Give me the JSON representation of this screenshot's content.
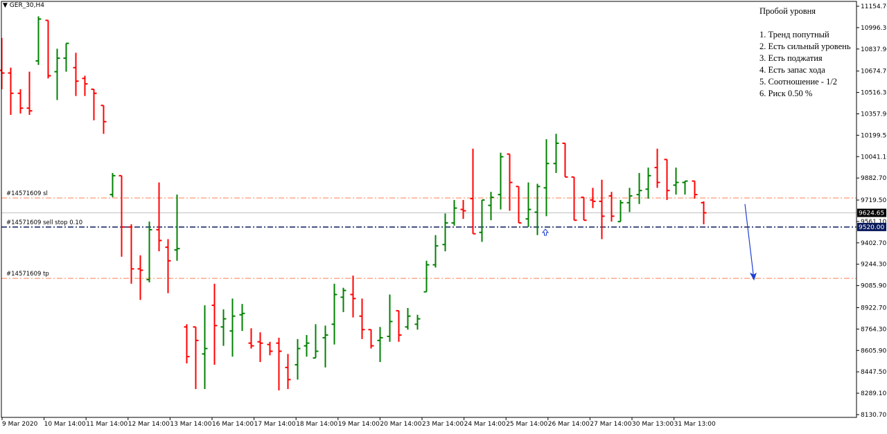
{
  "symbol_label": "GER_30,H4",
  "notes": {
    "title": "Пробой уровня",
    "items": [
      "1. Тренд попутный",
      "2. Есть сильный уровень",
      "3. Есть поджатия",
      "4. Есть запас хода",
      "5. Соотношение - 1/2",
      "6. Риск 0.50 %"
    ]
  },
  "colors": {
    "bull": "#008000",
    "bear": "#ff0000",
    "order_sl_tp": "#ff7f50",
    "order_entry": "#0a1a5c",
    "price_line": "#c0c0c0",
    "arrow": "#1e3fd0",
    "axis": "#000000"
  },
  "chart_data": {
    "type": "ohlc",
    "y_axis": {
      "ticks": [
        "11154.70",
        "10996.30",
        "10837.90",
        "10674.70",
        "10516.30",
        "10357.90",
        "10199.50",
        "10041.10",
        "9882.70",
        "9719.50",
        "9561.10",
        "9402.70",
        "9244.30",
        "9085.90",
        "8922.70",
        "8764.30",
        "8605.90",
        "8447.50",
        "8289.10",
        "8130.70"
      ],
      "range": [
        8130.7,
        11154.7
      ]
    },
    "x_axis": {
      "labels": [
        "9 Mar 2020",
        "10 Mar 14:00",
        "11 Mar 14:00",
        "12 Mar 14:00",
        "13 Mar 14:00",
        "16 Mar 14:00",
        "17 Mar 14:00",
        "18 Mar 14:00",
        "19 Mar 14:00",
        "20 Mar 14:00",
        "23 Mar 14:00",
        "24 Mar 14:00",
        "25 Mar 14:00",
        "26 Mar 14:00",
        "27 Mar 14:00",
        "30 Mar 13:00",
        "31 Mar 13:00"
      ]
    },
    "levels": [
      {
        "label": "#14571609 sl",
        "value": 9735,
        "kind": "sl"
      },
      {
        "label": "#14571609 sell stop 0.10",
        "value": 9520,
        "kind": "entry"
      },
      {
        "label": "#14571609 tp",
        "value": 9140,
        "kind": "tp"
      }
    ],
    "current_price": {
      "value": 9624.65,
      "label": "9624.65"
    },
    "entry_price_label": {
      "value": 9520,
      "label": "9520.00"
    },
    "bars": [
      [
        10680,
        10540,
        10920,
        10660
      ],
      [
        10660,
        10350,
        10700,
        10510
      ],
      [
        10510,
        10360,
        10540,
        10400
      ],
      [
        10400,
        10350,
        10670,
        10380
      ],
      [
        10750,
        10720,
        11080,
        11060
      ],
      [
        11050,
        10620,
        11050,
        10640
      ],
      [
        10670,
        10460,
        10840,
        10770
      ],
      [
        10770,
        10670,
        10880,
        10880
      ],
      [
        10700,
        10490,
        10810,
        10600
      ],
      [
        10620,
        10490,
        10640,
        10580
      ],
      [
        10540,
        10310,
        10540,
        10510
      ],
      [
        10420,
        10210,
        10350,
        10300
      ],
      [
        9760,
        9740,
        9920,
        9900
      ],
      [
        9900,
        9300,
        9900,
        9520
      ],
      [
        9520,
        9100,
        9540,
        9210
      ],
      [
        9210,
        8980,
        9310,
        9200
      ],
      [
        9130,
        9110,
        9560,
        9500
      ],
      [
        9500,
        9340,
        9850,
        9420
      ],
      [
        9370,
        9030,
        9430,
        9270
      ],
      [
        9350,
        9270,
        9760,
        9360
      ],
      [
        8780,
        8510,
        8800,
        8560
      ],
      [
        8780,
        8320,
        8580,
        8680
      ],
      [
        8580,
        8320,
        8940,
        8620
      ],
      [
        8940,
        8500,
        9100,
        8790
      ],
      [
        8780,
        8640,
        8910,
        8840
      ],
      [
        8750,
        8560,
        8990,
        8860
      ],
      [
        8870,
        8750,
        8950,
        8880
      ],
      [
        8660,
        8620,
        8770,
        8640
      ],
      [
        8670,
        8520,
        8740,
        8660
      ],
      [
        8650,
        8570,
        8670,
        8600
      ],
      [
        8660,
        8310,
        8700,
        8600
      ],
      [
        8480,
        8320,
        8580,
        8390
      ],
      [
        8500,
        8390,
        8690,
        8620
      ],
      [
        8640,
        8560,
        8720,
        8660
      ],
      [
        8550,
        8570,
        8800,
        8600
      ],
      [
        8700,
        8480,
        8790,
        8720
      ],
      [
        8800,
        8650,
        9100,
        9020
      ],
      [
        9000,
        8890,
        9070,
        9050
      ],
      [
        9020,
        8850,
        9160,
        8990
      ],
      [
        8860,
        8690,
        8990,
        8760
      ],
      [
        8760,
        8620,
        8760,
        8640
      ],
      [
        8680,
        8520,
        8780,
        8700
      ],
      [
        8710,
        8670,
        9020,
        8820
      ],
      [
        8900,
        8670,
        8900,
        8720
      ],
      [
        8780,
        8760,
        8920,
        8860
      ],
      [
        8800,
        8760,
        8870,
        8840
      ],
      [
        9040,
        9060,
        9270,
        9240
      ],
      [
        9240,
        9220,
        9460,
        9380
      ],
      [
        9390,
        9340,
        9620,
        9550
      ],
      [
        9550,
        9530,
        9720,
        9660
      ],
      [
        9650,
        9580,
        9720,
        9640
      ],
      [
        9730,
        9470,
        10100,
        9470
      ],
      [
        9480,
        9410,
        9700,
        9720
      ],
      [
        9680,
        9570,
        9780,
        9740
      ],
      [
        9760,
        9650,
        10070,
        10040
      ],
      [
        10060,
        9640,
        10050,
        9850
      ],
      [
        9820,
        9620,
        9790,
        9550
      ],
      [
        9580,
        9520,
        9850,
        9650
      ],
      [
        9630,
        9460,
        9840,
        9820
      ],
      [
        9810,
        9600,
        10170,
        9990
      ],
      [
        9990,
        9920,
        10210,
        10140
      ],
      [
        10140,
        9890,
        10060,
        9890
      ],
      [
        9890,
        9840,
        9740,
        9570
      ],
      [
        9740,
        9710,
        9740,
        9570
      ],
      [
        9720,
        9660,
        9810,
        9710
      ],
      [
        9710,
        9430,
        9870,
        9600
      ],
      [
        9750,
        9560,
        9780,
        9600
      ],
      [
        9560,
        9560,
        9720,
        9700
      ],
      [
        9700,
        9630,
        9810,
        9750
      ],
      [
        9760,
        9690,
        9920,
        9790
      ],
      [
        9800,
        9730,
        9960,
        9900
      ],
      [
        9960,
        9810,
        10100,
        9850
      ],
      [
        10020,
        9720,
        10020,
        9790
      ],
      [
        9830,
        9760,
        9960,
        9850
      ],
      [
        9850,
        9760,
        9860,
        9860
      ],
      [
        9860,
        9730,
        9860,
        9760
      ],
      [
        9700,
        9540,
        9710,
        9625
      ]
    ]
  }
}
